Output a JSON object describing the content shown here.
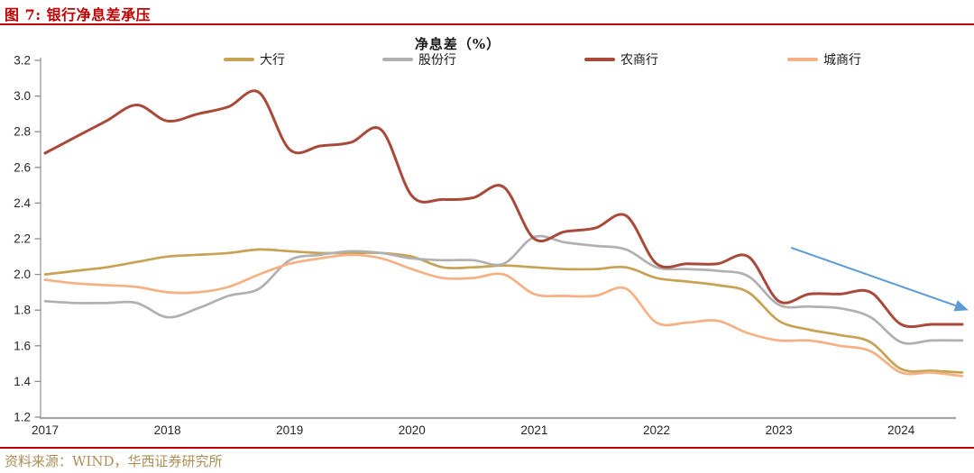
{
  "page": {
    "figure_title": "图 7: 银行净息差承压",
    "source_text": "资料来源：WIND，华西证券研究所",
    "colors": {
      "accent_red": "#C00000",
      "source_gold": "#AC8E55"
    }
  },
  "chart_data": {
    "type": "line",
    "title": "净息差（%）",
    "grid": false,
    "legend_position": "top",
    "ylim": [
      1.2,
      3.2
    ],
    "y_tick_labels": [
      "3.2",
      "3.0",
      "2.8",
      "2.6",
      "2.4",
      "2.2",
      "2.0",
      "1.8",
      "1.6",
      "1.4",
      "1.2"
    ],
    "x_tick_labels": [
      "2017",
      "2018",
      "2019",
      "2020",
      "2021",
      "2022",
      "2023",
      "2024"
    ],
    "x_quarters": [
      "2017Q1",
      "2017Q2",
      "2017Q3",
      "2017Q4",
      "2018Q1",
      "2018Q2",
      "2018Q3",
      "2018Q4",
      "2019Q1",
      "2019Q2",
      "2019Q3",
      "2019Q4",
      "2020Q1",
      "2020Q2",
      "2020Q3",
      "2020Q4",
      "2021Q1",
      "2021Q2",
      "2021Q3",
      "2021Q4",
      "2022Q1",
      "2022Q2",
      "2022Q3",
      "2022Q4",
      "2023Q1",
      "2023Q2",
      "2023Q3",
      "2023Q4",
      "2024Q1",
      "2024Q2",
      "2024Q3"
    ],
    "series": [
      {
        "name": "大行",
        "color": "#C7A254",
        "values": [
          2.0,
          2.02,
          2.04,
          2.07,
          2.1,
          2.11,
          2.12,
          2.14,
          2.13,
          2.12,
          2.12,
          2.12,
          2.1,
          2.04,
          2.04,
          2.05,
          2.04,
          2.03,
          2.03,
          2.04,
          1.98,
          1.96,
          1.94,
          1.9,
          1.74,
          1.69,
          1.66,
          1.62,
          1.47,
          1.46,
          1.45
        ]
      },
      {
        "name": "股份行",
        "color": "#B0B0B0",
        "values": [
          1.85,
          1.84,
          1.84,
          1.84,
          1.76,
          1.81,
          1.88,
          1.92,
          2.08,
          2.11,
          2.13,
          2.12,
          2.09,
          2.08,
          2.08,
          2.06,
          2.21,
          2.18,
          2.16,
          2.14,
          2.04,
          2.03,
          2.02,
          1.99,
          1.83,
          1.82,
          1.81,
          1.76,
          1.62,
          1.63,
          1.63
        ]
      },
      {
        "name": "农商行",
        "color": "#A8493A",
        "values": [
          2.68,
          2.77,
          2.86,
          2.95,
          2.86,
          2.9,
          2.94,
          3.02,
          2.7,
          2.72,
          2.74,
          2.81,
          2.44,
          2.42,
          2.43,
          2.49,
          2.2,
          2.24,
          2.26,
          2.33,
          2.06,
          2.06,
          2.06,
          2.1,
          1.85,
          1.89,
          1.89,
          1.9,
          1.72,
          1.72,
          1.72
        ]
      },
      {
        "name": "城商行",
        "color": "#F5B183",
        "values": [
          1.97,
          1.95,
          1.94,
          1.93,
          1.9,
          1.9,
          1.93,
          2.0,
          2.06,
          2.09,
          2.11,
          2.09,
          2.03,
          1.98,
          1.98,
          2.0,
          1.89,
          1.88,
          1.88,
          1.92,
          1.73,
          1.73,
          1.74,
          1.67,
          1.63,
          1.63,
          1.6,
          1.57,
          1.45,
          1.45,
          1.43
        ]
      }
    ],
    "annotation_arrow": {
      "color": "#5B9BD5",
      "x_from_year": 2023.1,
      "y_from_value": 2.15,
      "x_to_year": 2024.55,
      "y_to_value": 1.8
    }
  }
}
